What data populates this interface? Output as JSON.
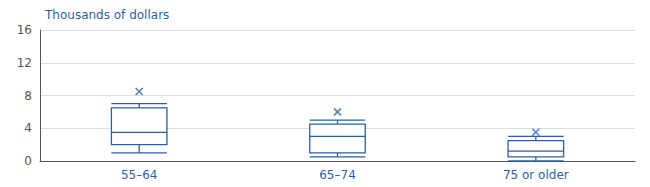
{
  "chart_data": {
    "type": "box",
    "title": "Thousands of dollars",
    "categories": [
      "55–64",
      "65–74",
      "75 or older"
    ],
    "boxes": [
      {
        "q1": 2.0,
        "median": 3.5,
        "q3": 6.5,
        "whisker_low": 1.0,
        "whisker_high": 7.0,
        "mean": 8.5
      },
      {
        "q1": 1.0,
        "median": 3.0,
        "q3": 4.5,
        "whisker_low": 0.5,
        "whisker_high": 5.0,
        "mean": 6.0
      },
      {
        "q1": 0.5,
        "median": 1.2,
        "q3": 2.5,
        "whisker_low": 0.0,
        "whisker_high": 3.0,
        "mean": 3.5
      }
    ],
    "color": "#2e5fa3",
    "marker": "x",
    "ylim": [
      0,
      16
    ],
    "yticks": [
      0,
      4,
      8,
      12,
      16
    ],
    "grid": true
  }
}
